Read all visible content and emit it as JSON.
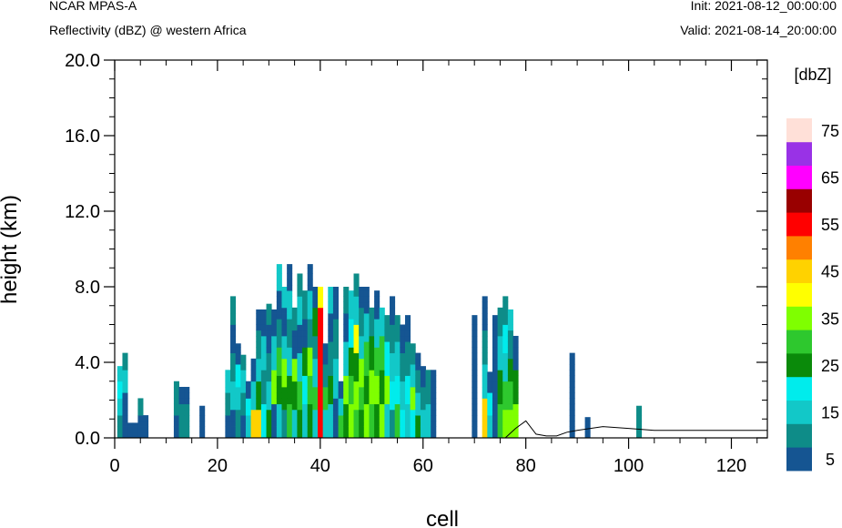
{
  "header": {
    "model": "NCAR MPAS-A",
    "field": "Reflectivity (dBZ) @ western Africa",
    "init": "Init: 2021-08-12_00:00:00",
    "valid": "Valid: 2021-08-14_20:00:00"
  },
  "chart_data": {
    "type": "heatmap",
    "xlabel": "cell",
    "ylabel": "height (km)",
    "xlim": [
      0,
      127
    ],
    "ylim": [
      0,
      20
    ],
    "x_ticks": [
      "0",
      "20",
      "40",
      "60",
      "80",
      "100",
      "120"
    ],
    "x_tick_values": [
      0,
      20,
      40,
      60,
      80,
      100,
      120
    ],
    "y_ticks": [
      "0.0",
      "4.0",
      "8.0",
      "12.0",
      "16.0",
      "20.0"
    ],
    "y_tick_values": [
      0,
      4,
      8,
      12,
      16,
      20
    ],
    "grid": false,
    "colorbar": {
      "title": "[dbZ]",
      "labels": [
        "5",
        "15",
        "25",
        "35",
        "45",
        "55",
        "65",
        "75"
      ],
      "levels": [
        5,
        10,
        15,
        20,
        25,
        30,
        35,
        40,
        45,
        50,
        55,
        60,
        65,
        70,
        75
      ],
      "colors": [
        "#155592",
        "#0e8c88",
        "#12c8c8",
        "#00ecec",
        "#0a8a0a",
        "#2ec82e",
        "#7fff00",
        "#ffff00",
        "#ffd200",
        "#ff8000",
        "#ff0000",
        "#990000",
        "#ff00ff",
        "#9932e6",
        "#ffe0d8"
      ]
    },
    "columns": [
      {
        "x": 1,
        "top": 3.8,
        "class": [
          1,
          2,
          3,
          2
        ]
      },
      {
        "x": 2,
        "top": 4.5,
        "class": [
          0,
          0,
          2,
          1
        ]
      },
      {
        "x": 3,
        "top": 0.8,
        "class": [
          0
        ]
      },
      {
        "x": 4,
        "top": 0.8,
        "class": [
          0
        ]
      },
      {
        "x": 5,
        "top": 2.2,
        "class": [
          0,
          1
        ]
      },
      {
        "x": 6,
        "top": 1.3,
        "class": [
          0
        ]
      },
      {
        "x": 12,
        "top": 3.1,
        "class": [
          0,
          1,
          1
        ]
      },
      {
        "x": 13,
        "top": 2.8,
        "class": [
          1,
          1,
          0
        ]
      },
      {
        "x": 14,
        "top": 2.8,
        "class": [
          1,
          1,
          0
        ]
      },
      {
        "x": 17,
        "top": 1.7,
        "class": [
          0
        ]
      },
      {
        "x": 22,
        "top": 3.6,
        "class": [
          0,
          1,
          2
        ]
      },
      {
        "x": 23,
        "top": 7.5,
        "class": [
          0,
          2,
          1,
          0,
          1
        ]
      },
      {
        "x": 24,
        "top": 5.0,
        "class": [
          1,
          2,
          3,
          0
        ]
      },
      {
        "x": 25,
        "top": 4.4,
        "class": [
          0,
          1,
          2,
          1
        ]
      },
      {
        "x": 26,
        "top": 3.1,
        "class": [
          2,
          3,
          0
        ]
      },
      {
        "x": 27,
        "top": 4.3,
        "class": [
          8,
          2,
          0
        ]
      },
      {
        "x": 28,
        "top": 6.8,
        "class": [
          8,
          4,
          2,
          1,
          0
        ]
      },
      {
        "x": 29,
        "top": 6.8,
        "class": [
          3,
          1,
          2,
          0
        ]
      },
      {
        "x": 30,
        "top": 7.1,
        "class": [
          4,
          2,
          1,
          0,
          1
        ]
      },
      {
        "x": 31,
        "top": 6.8,
        "class": [
          0,
          6,
          2,
          0
        ]
      },
      {
        "x": 32,
        "top": 9.2,
        "class": [
          2,
          4,
          5,
          1,
          0,
          2
        ]
      },
      {
        "x": 33,
        "top": 8.0,
        "class": [
          1,
          4,
          6,
          2,
          0,
          2
        ]
      },
      {
        "x": 34,
        "top": 9.2,
        "class": [
          5,
          4,
          2,
          1,
          2,
          0
        ]
      },
      {
        "x": 35,
        "top": 7.0,
        "class": [
          2,
          4,
          6,
          0,
          1
        ]
      },
      {
        "x": 36,
        "top": 8.7,
        "class": [
          4,
          5,
          2,
          0,
          2,
          1
        ]
      },
      {
        "x": 37,
        "top": 7.8,
        "class": [
          2,
          3,
          4,
          0,
          1
        ]
      },
      {
        "x": 38,
        "top": 9.2,
        "class": [
          4,
          5,
          6,
          1,
          2,
          0
        ]
      },
      {
        "x": 39,
        "top": 8.0,
        "class": [
          2,
          5,
          2,
          1,
          4,
          0
        ]
      },
      {
        "x": 40,
        "top": 8.0,
        "class": [
          10,
          10,
          10,
          10,
          10,
          7
        ]
      },
      {
        "x": 41,
        "top": 5.0,
        "class": [
          2,
          5,
          1,
          0
        ]
      },
      {
        "x": 42,
        "top": 8.0,
        "class": [
          2,
          4,
          1,
          0,
          2
        ]
      },
      {
        "x": 43,
        "top": 8.0,
        "class": [
          0,
          2,
          1,
          0
        ]
      },
      {
        "x": 44,
        "top": 3.1,
        "class": [
          5,
          2,
          0
        ]
      },
      {
        "x": 45,
        "top": 8.0,
        "class": [
          4,
          6,
          2,
          0,
          1
        ]
      },
      {
        "x": 46,
        "top": 7.8,
        "class": [
          6,
          5,
          4,
          3,
          2
        ]
      },
      {
        "x": 47,
        "top": 8.7,
        "class": [
          5,
          6,
          4,
          7,
          2,
          1
        ]
      },
      {
        "x": 48,
        "top": 8.0,
        "class": [
          4,
          5,
          6,
          2,
          1,
          0
        ]
      },
      {
        "x": 49,
        "top": 8.0,
        "class": [
          6,
          4,
          5,
          2,
          0
        ]
      },
      {
        "x": 50,
        "top": 7.0,
        "class": [
          5,
          6,
          4,
          1
        ]
      },
      {
        "x": 51,
        "top": 7.8,
        "class": [
          4,
          6,
          5,
          2,
          0
        ]
      },
      {
        "x": 52,
        "top": 7.0,
        "class": [
          6,
          4,
          5,
          2
        ]
      },
      {
        "x": 53,
        "top": 6.5,
        "class": [
          2,
          6,
          3,
          1
        ]
      },
      {
        "x": 54,
        "top": 7.5,
        "class": [
          1,
          3,
          2,
          1,
          0
        ]
      },
      {
        "x": 55,
        "top": 6.5,
        "class": [
          5,
          3,
          2,
          1
        ]
      },
      {
        "x": 56,
        "top": 6.0,
        "class": [
          3,
          2,
          1,
          0
        ]
      },
      {
        "x": 57,
        "top": 6.5,
        "class": [
          2,
          3,
          1,
          0
        ]
      },
      {
        "x": 58,
        "top": 5.0,
        "class": [
          3,
          6,
          2,
          1
        ]
      },
      {
        "x": 59,
        "top": 4.5,
        "class": [
          4,
          2,
          1,
          0
        ]
      },
      {
        "x": 60,
        "top": 3.8,
        "class": [
          2,
          1,
          0
        ]
      },
      {
        "x": 61,
        "top": 3.6,
        "class": [
          2,
          1
        ]
      },
      {
        "x": 62,
        "top": 3.6,
        "class": [
          0,
          0
        ]
      },
      {
        "x": 70,
        "top": 6.5,
        "class": [
          0
        ]
      },
      {
        "x": 72,
        "top": 7.5,
        "class": [
          8,
          2,
          1,
          0
        ]
      },
      {
        "x": 73,
        "top": 3.5,
        "class": [
          2,
          3,
          0
        ]
      },
      {
        "x": 74,
        "top": 6.5,
        "class": [
          0
        ]
      },
      {
        "x": 75,
        "top": 7.0,
        "class": [
          5,
          4,
          2,
          1
        ]
      },
      {
        "x": 76,
        "top": 7.5,
        "class": [
          6,
          5,
          2,
          3,
          1
        ]
      },
      {
        "x": 77,
        "top": 6.8,
        "class": [
          6,
          5,
          4,
          1,
          2
        ]
      },
      {
        "x": 78,
        "top": 5.5,
        "class": [
          6,
          4,
          0
        ]
      },
      {
        "x": 89,
        "top": 4.5,
        "class": [
          0,
          0
        ]
      },
      {
        "x": 92,
        "top": 1.1,
        "class": [
          0
        ]
      },
      {
        "x": 102,
        "top": 1.7,
        "class": [
          1
        ]
      }
    ],
    "terrain": [
      [
        76,
        0.0
      ],
      [
        78,
        0.5
      ],
      [
        80,
        0.9
      ],
      [
        82,
        0.2
      ],
      [
        84,
        0.1
      ],
      [
        86,
        0.1
      ],
      [
        88,
        0.3
      ],
      [
        90,
        0.4
      ],
      [
        95,
        0.6
      ],
      [
        100,
        0.5
      ],
      [
        105,
        0.4
      ],
      [
        110,
        0.4
      ],
      [
        115,
        0.4
      ],
      [
        120,
        0.4
      ],
      [
        125,
        0.4
      ],
      [
        127,
        0.4
      ]
    ]
  }
}
